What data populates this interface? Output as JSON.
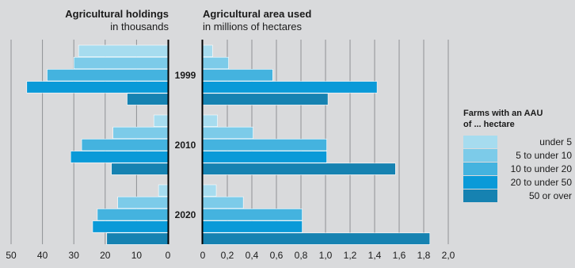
{
  "colors": {
    "background": "#d9dadc",
    "grid": "#8e9094",
    "axis": "#000000",
    "text": "#1a1a1a",
    "series": [
      "#a6dcef",
      "#7ccbe9",
      "#44b3df",
      "#0a9ad8",
      "#1682b1"
    ]
  },
  "chart_data": {
    "type": "bar",
    "orientation": "horizontal",
    "layout": "back-to-back",
    "categories": [
      "1999",
      "2010",
      "2020"
    ],
    "series": [
      {
        "name": "under 5",
        "holdings": [
          28.5,
          4.5,
          3.0
        ],
        "area": [
          0.08,
          0.12,
          0.11
        ]
      },
      {
        "name": "5 to under 10",
        "holdings": [
          30.0,
          17.5,
          16.0
        ],
        "area": [
          0.21,
          0.41,
          0.33
        ]
      },
      {
        "name": "10 to under 20",
        "holdings": [
          38.5,
          27.5,
          22.5
        ],
        "area": [
          0.57,
          1.01,
          0.81
        ]
      },
      {
        "name": "20 to under 50",
        "holdings": [
          45.0,
          31.0,
          24.0
        ],
        "area": [
          1.42,
          1.01,
          0.81
        ]
      },
      {
        "name": "50 or over",
        "holdings": [
          13.0,
          18.0,
          19.5
        ],
        "area": [
          1.02,
          1.57,
          1.85
        ]
      }
    ],
    "left_panel": {
      "title": "Agricultural holdings",
      "subtitle": "in thousands",
      "xlim": [
        50,
        0
      ],
      "ticks": [
        "50",
        "40",
        "30",
        "20",
        "10",
        "0"
      ]
    },
    "right_panel": {
      "title": "Agricultural area used",
      "subtitle": "in millions of hectares",
      "xlim": [
        0,
        2.0
      ],
      "ticks": [
        "0",
        "0,2",
        "0,4",
        "0,6",
        "0,8",
        "1,0",
        "1,2",
        "1,4",
        "1,6",
        "1,8",
        "2,0"
      ]
    },
    "legend": {
      "title_line1": "Farms with an AAU",
      "title_line2": "of ... hectare",
      "position": "right"
    },
    "grid": true
  }
}
